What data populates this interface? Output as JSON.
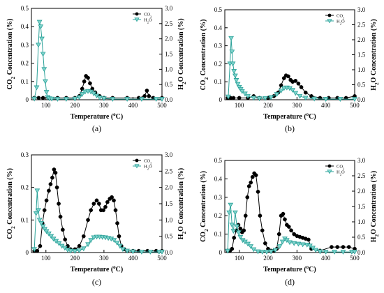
{
  "chart_data": [
    {
      "type": "scatter",
      "panel_label": "(a)",
      "xlabel": "Temperature (°C)",
      "ylabel_left": "CO2 Concentration (%)",
      "ylabel_right": "H2O Concentration (%)",
      "xlim": [
        50,
        500
      ],
      "ylim_left": [
        0,
        0.5
      ],
      "ylim_right": [
        0,
        3.0
      ],
      "xticks": [
        100,
        200,
        300,
        400,
        500
      ],
      "yticks_left": [
        0,
        0.1,
        0.2,
        0.3,
        0.4,
        0.5
      ],
      "yticks_right": [
        0,
        0.5,
        1.0,
        1.5,
        2.0,
        2.5,
        3.0
      ],
      "legend": {
        "position": "top-right",
        "entries": [
          "CO2",
          "H2O"
        ]
      },
      "series": [
        {
          "name": "CO2",
          "axis": "left",
          "marker": "circle",
          "color": "#000000",
          "x": [
            60,
            75,
            90,
            110,
            140,
            170,
            200,
            215,
            225,
            232,
            238,
            245,
            252,
            260,
            270,
            285,
            300,
            330,
            380,
            420,
            440,
            448,
            455,
            470,
            500
          ],
          "y": [
            0.01,
            0.01,
            0.01,
            0.01,
            0.01,
            0.01,
            0.01,
            0.02,
            0.06,
            0.1,
            0.13,
            0.12,
            0.09,
            0.06,
            0.04,
            0.02,
            0.01,
            0.01,
            0.01,
            0.01,
            0.02,
            0.05,
            0.02,
            0.01,
            0.01
          ]
        },
        {
          "name": "H2O",
          "axis": "right",
          "marker": "triangle-down",
          "color": "#2aa198",
          "x": [
            60,
            68,
            74,
            78,
            82,
            86,
            90,
            94,
            98,
            102,
            106,
            112,
            120,
            140,
            170,
            200,
            215,
            225,
            235,
            245,
            255,
            265,
            275,
            285,
            300,
            330,
            380,
            430,
            480,
            500
          ],
          "y": [
            0.03,
            0.4,
            1.8,
            2.55,
            2.4,
            2.0,
            1.5,
            1.0,
            0.6,
            0.25,
            0.08,
            0.04,
            0.03,
            0.02,
            0.02,
            0.03,
            0.08,
            0.18,
            0.26,
            0.28,
            0.26,
            0.2,
            0.13,
            0.07,
            0.04,
            0.02,
            0.02,
            0.02,
            0.02,
            0.02
          ]
        }
      ]
    },
    {
      "type": "scatter",
      "panel_label": "(b)",
      "xlabel": "Temperature (°C)",
      "ylabel_left": "CO2 Concentration (%)",
      "ylabel_right": "H2O Concentration (%)",
      "xlim": [
        50,
        500
      ],
      "ylim_left": [
        0,
        0.5
      ],
      "ylim_right": [
        0,
        3.0
      ],
      "xticks": [
        100,
        200,
        300,
        400,
        500
      ],
      "yticks_left": [
        0,
        0.1,
        0.2,
        0.3,
        0.4,
        0.5
      ],
      "yticks_right": [
        0,
        0.5,
        1.0,
        1.5,
        2.0,
        2.5,
        3.0
      ],
      "legend": {
        "position": "top-right",
        "entries": [
          "CO2",
          "H2O"
        ]
      },
      "series": [
        {
          "name": "CO2",
          "axis": "left",
          "marker": "circle",
          "color": "#000000",
          "x": [
            60,
            70,
            80,
            100,
            130,
            150,
            170,
            200,
            220,
            235,
            245,
            255,
            262,
            270,
            278,
            285,
            295,
            305,
            315,
            330,
            350,
            380,
            410,
            440,
            470,
            500
          ],
          "y": [
            0.01,
            0.01,
            0.01,
            0.01,
            0.01,
            0.02,
            0.01,
            0.01,
            0.02,
            0.04,
            0.08,
            0.12,
            0.135,
            0.13,
            0.11,
            0.1,
            0.105,
            0.09,
            0.07,
            0.04,
            0.02,
            0.01,
            0.01,
            0.01,
            0.01,
            0.02
          ]
        },
        {
          "name": "H2O",
          "axis": "right",
          "marker": "triangle-down",
          "color": "#2aa198",
          "x": [
            62,
            68,
            72,
            75,
            78,
            82,
            86,
            90,
            95,
            100,
            105,
            110,
            120,
            130,
            150,
            170,
            190,
            210,
            230,
            245,
            255,
            265,
            275,
            285,
            295,
            310,
            330,
            360,
            400,
            450,
            500
          ],
          "y": [
            0.1,
            1.2,
            2.05,
            1.6,
            1.2,
            0.95,
            0.8,
            0.65,
            0.52,
            0.42,
            0.35,
            0.28,
            0.2,
            0.12,
            0.06,
            0.04,
            0.05,
            0.08,
            0.18,
            0.3,
            0.38,
            0.4,
            0.38,
            0.32,
            0.22,
            0.12,
            0.06,
            0.03,
            0.02,
            0.02,
            0.02
          ]
        }
      ]
    },
    {
      "type": "scatter",
      "panel_label": "(c)",
      "xlabel": "Temperature (°C)",
      "ylabel_left": "CO2 Concentration (%)",
      "ylabel_right": "H2O Concentration (%)",
      "xlim": [
        50,
        500
      ],
      "ylim_left": [
        0,
        0.3
      ],
      "ylim_right": [
        0,
        3.0
      ],
      "xticks": [
        100,
        200,
        300,
        400,
        500
      ],
      "yticks_left": [
        0,
        0.1,
        0.2,
        0.3
      ],
      "yticks_right": [
        0,
        0.5,
        1.0,
        1.5,
        2.0,
        2.5,
        3.0
      ],
      "legend": {
        "position": "top-right",
        "entries": [
          "CO2",
          "H2O"
        ]
      },
      "series": [
        {
          "name": "CO2",
          "axis": "left",
          "marker": "circle",
          "color": "#000000",
          "x": [
            60,
            70,
            80,
            88,
            95,
            102,
            110,
            116,
            122,
            128,
            133,
            138,
            144,
            150,
            158,
            166,
            175,
            185,
            200,
            215,
            230,
            245,
            255,
            265,
            275,
            283,
            290,
            298,
            305,
            312,
            320,
            327,
            334,
            340,
            346,
            352,
            360,
            370,
            380,
            400,
            420,
            450,
            480,
            500
          ],
          "y": [
            0.005,
            0.005,
            0.02,
            0.09,
            0.13,
            0.16,
            0.19,
            0.21,
            0.23,
            0.255,
            0.245,
            0.2,
            0.15,
            0.11,
            0.07,
            0.04,
            0.02,
            0.01,
            0.01,
            0.02,
            0.05,
            0.1,
            0.13,
            0.15,
            0.16,
            0.15,
            0.13,
            0.13,
            0.14,
            0.155,
            0.165,
            0.17,
            0.16,
            0.13,
            0.09,
            0.05,
            0.02,
            0.01,
            0.005,
            0.005,
            0.005,
            0.005,
            0.005,
            0.005
          ]
        },
        {
          "name": "H2O",
          "axis": "right",
          "marker": "triangle-down",
          "color": "#2aa198",
          "x": [
            60,
            66,
            70,
            74,
            78,
            84,
            90,
            96,
            102,
            110,
            118,
            126,
            135,
            145,
            155,
            165,
            175,
            185,
            200,
            215,
            230,
            245,
            255,
            265,
            275,
            285,
            295,
            305,
            315,
            325,
            335,
            345,
            355,
            365,
            380,
            400,
            430,
            460,
            490,
            500
          ],
          "y": [
            0.1,
            1.2,
            1.9,
            1.3,
            1.0,
            0.9,
            0.8,
            0.72,
            0.65,
            0.58,
            0.5,
            0.42,
            0.35,
            0.28,
            0.2,
            0.14,
            0.08,
            0.05,
            0.04,
            0.06,
            0.12,
            0.25,
            0.38,
            0.46,
            0.48,
            0.48,
            0.47,
            0.46,
            0.44,
            0.42,
            0.38,
            0.3,
            0.2,
            0.1,
            0.05,
            0.03,
            0.02,
            0.02,
            0.02,
            0.02
          ]
        }
      ]
    },
    {
      "type": "scatter",
      "panel_label": "(d)",
      "xlabel": "Temperature (°C)",
      "ylabel_left": "CO2 Concentration (%)",
      "ylabel_right": "H2O Concentration (%)",
      "xlim": [
        50,
        500
      ],
      "ylim_left": [
        0,
        0.5
      ],
      "ylim_right": [
        0,
        3.0
      ],
      "xticks": [
        100,
        200,
        300,
        400,
        500
      ],
      "yticks_left": [
        0,
        0.1,
        0.2,
        0.3,
        0.4,
        0.5
      ],
      "yticks_right": [
        0,
        0.5,
        1.0,
        1.5,
        2.0,
        2.5,
        3.0
      ],
      "legend": {
        "position": "top-right",
        "entries": [
          "CO2",
          "H2O"
        ]
      },
      "series": [
        {
          "name": "CO2",
          "axis": "left",
          "marker": "circle",
          "color": "#000000",
          "x": [
            60,
            68,
            75,
            82,
            90,
            97,
            104,
            110,
            116,
            122,
            128,
            134,
            140,
            146,
            152,
            158,
            165,
            172,
            180,
            190,
            200,
            210,
            220,
            230,
            238,
            245,
            252,
            258,
            265,
            272,
            280,
            290,
            300,
            310,
            320,
            330,
            340,
            350,
            380,
            420,
            440,
            460,
            480,
            500
          ],
          "y": [
            0.01,
            0.01,
            0.02,
            0.08,
            0.12,
            0.15,
            0.13,
            0.11,
            0.12,
            0.2,
            0.3,
            0.36,
            0.38,
            0.41,
            0.43,
            0.42,
            0.33,
            0.2,
            0.12,
            0.05,
            0.02,
            0.01,
            0.01,
            0.02,
            0.1,
            0.2,
            0.21,
            0.18,
            0.15,
            0.14,
            0.12,
            0.1,
            0.09,
            0.085,
            0.08,
            0.075,
            0.07,
            0.02,
            0.01,
            0.03,
            0.03,
            0.03,
            0.03,
            0.02
          ]
        },
        {
          "name": "H2O",
          "axis": "right",
          "marker": "triangle-down",
          "color": "#2aa198",
          "x": [
            60,
            65,
            70,
            75,
            80,
            86,
            92,
            98,
            104,
            112,
            120,
            130,
            140,
            150,
            165,
            180,
            195,
            210,
            225,
            240,
            250,
            258,
            265,
            275,
            290,
            305,
            320,
            335,
            345,
            355,
            365,
            380,
            400,
            430,
            460,
            490,
            500
          ],
          "y": [
            0.05,
            1.3,
            1.55,
            0.9,
            0.7,
            1.3,
            0.85,
            0.65,
            0.5,
            0.4,
            0.35,
            0.28,
            0.2,
            0.1,
            0.03,
            0.02,
            0.02,
            0.03,
            0.08,
            0.2,
            0.35,
            0.45,
            0.4,
            0.33,
            0.3,
            0.28,
            0.26,
            0.25,
            0.22,
            0.15,
            0.08,
            0.03,
            0.02,
            0.02,
            0.02,
            0.02,
            0.02
          ]
        }
      ]
    }
  ]
}
